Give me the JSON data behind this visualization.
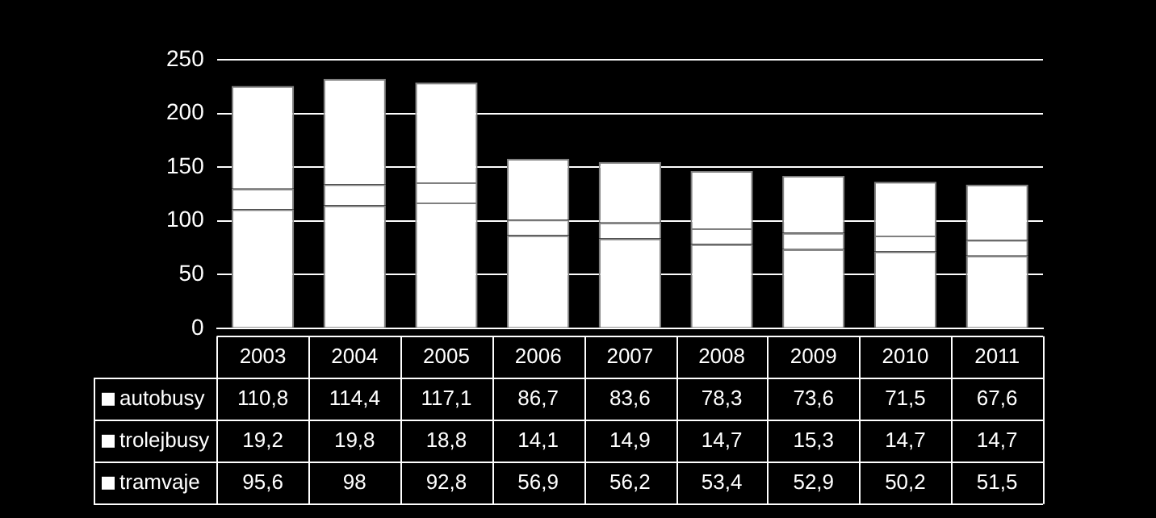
{
  "chart_data": {
    "type": "bar",
    "stacked": true,
    "categories": [
      "2003",
      "2004",
      "2005",
      "2006",
      "2007",
      "2008",
      "2009",
      "2010",
      "2011"
    ],
    "series": [
      {
        "name": "autobusy",
        "color": "#ffffff",
        "values": [
          110.8,
          114.4,
          117.1,
          86.7,
          83.6,
          78.3,
          73.6,
          71.5,
          67.6
        ],
        "value_labels": [
          "110,8",
          "114,4",
          "117,1",
          "86,7",
          "83,6",
          "78,3",
          "73,6",
          "71,5",
          "67,6"
        ]
      },
      {
        "name": "trolejbusy",
        "color": "#ffffff",
        "values": [
          19.2,
          19.8,
          18.8,
          14.1,
          14.9,
          14.7,
          15.3,
          14.7,
          14.7
        ],
        "value_labels": [
          "19,2",
          "19,8",
          "18,8",
          "14,1",
          "14,9",
          "14,7",
          "15,3",
          "14,7",
          "14,7"
        ]
      },
      {
        "name": "tramvaje",
        "color": "#ffffff",
        "values": [
          95.6,
          98,
          92.8,
          56.9,
          56.2,
          53.4,
          52.9,
          50.2,
          51.5
        ],
        "value_labels": [
          "95,6",
          "98",
          "92,8",
          "56,9",
          "56,2",
          "53,4",
          "52,9",
          "50,2",
          "51,5"
        ]
      }
    ],
    "ylim": [
      0,
      250
    ],
    "yticks": [
      0,
      50,
      100,
      150,
      200,
      250
    ],
    "grid": "y",
    "legend": "bottom left"
  }
}
